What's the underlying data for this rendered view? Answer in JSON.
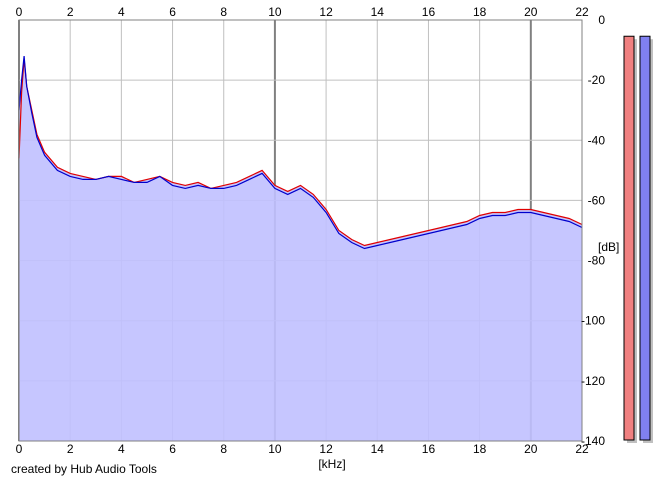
{
  "chart_data": {
    "type": "area",
    "xlabel": "[kHz]",
    "ylabel": "[dB]",
    "xlim": [
      0,
      22
    ],
    "ylim": [
      -140,
      0
    ],
    "x_ticks": [
      0,
      2,
      4,
      6,
      8,
      10,
      12,
      14,
      16,
      18,
      20,
      22
    ],
    "y_ticks": [
      0,
      -20,
      -40,
      -60,
      -80,
      -100,
      -120,
      -140
    ],
    "x": [
      0,
      0.1,
      0.2,
      0.3,
      0.5,
      0.7,
      1,
      1.5,
      2,
      2.5,
      3,
      3.5,
      4,
      4.5,
      5,
      5.5,
      6,
      6.5,
      7,
      7.5,
      8,
      8.5,
      9,
      9.5,
      10,
      10.5,
      11,
      11.5,
      12,
      12.5,
      13,
      13.5,
      14,
      14.5,
      15,
      15.5,
      16,
      16.5,
      17,
      17.5,
      18,
      18.5,
      19,
      19.5,
      20,
      20.5,
      21,
      21.5,
      22
    ],
    "series": [
      {
        "color": "#e00000",
        "values": [
          -46,
          -24,
          -13,
          -22,
          -30,
          -38,
          -44,
          -49,
          -51,
          -52,
          -53,
          -52,
          -52,
          -54,
          -53,
          -52,
          -54,
          -55,
          -54,
          -56,
          -55,
          -54,
          -52,
          -50,
          -55,
          -57,
          -55,
          -58,
          -63,
          -70,
          -73,
          -75,
          -74,
          -73,
          -72,
          -71,
          -70,
          -69,
          -68,
          -67,
          -65,
          -64,
          -64,
          -63,
          -63,
          -64,
          -65,
          -66,
          -68
        ]
      },
      {
        "color": "#0000cc",
        "values": [
          -30,
          -20,
          -12,
          -22,
          -31,
          -39,
          -45,
          -50,
          -52,
          -53,
          -53,
          -52,
          -53,
          -54,
          -54,
          -52,
          -55,
          -56,
          -55,
          -56,
          -56,
          -55,
          -53,
          -51,
          -56,
          -58,
          -56,
          -59,
          -64,
          -71,
          -74,
          -76,
          -75,
          -74,
          -73,
          -72,
          -71,
          -70,
          -69,
          -68,
          -66,
          -65,
          -65,
          -64,
          -64,
          -65,
          -66,
          -67,
          -69
        ]
      }
    ],
    "fill_color": "#c0c0ff",
    "grid": true
  },
  "meters": [
    {
      "color": "#f08080",
      "level": 0.98
    },
    {
      "color": "#8080f0",
      "level": 0.98
    }
  ],
  "credit": "created by Hub Audio Tools"
}
